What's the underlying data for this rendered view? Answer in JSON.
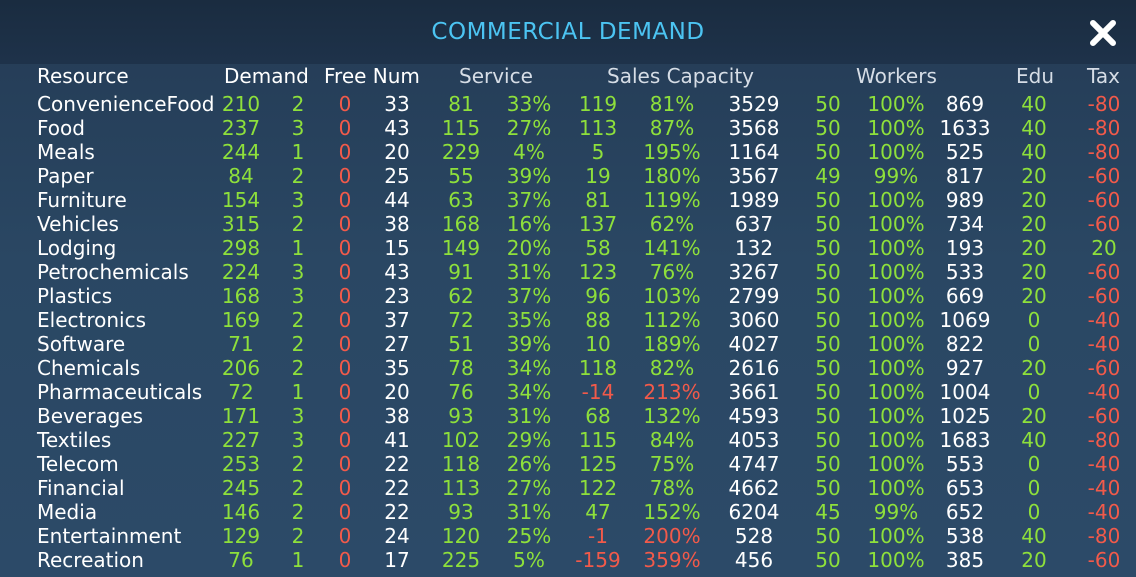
{
  "window": {
    "title": "COMMERCIAL DEMAND",
    "close_icon": "close-x-icon"
  },
  "colors": {
    "title": "#4cc4f2",
    "positive": "#8ee03b",
    "negative": "#f25a4a",
    "neutral": "#ffffff"
  },
  "headers": [
    "Resource",
    "Demand",
    "Free Num",
    "Service",
    "Sales Capacity",
    "Workers",
    "Edu",
    "Tax"
  ],
  "columns": [
    "resource",
    "demand",
    "demand_level",
    "free_num",
    "num",
    "service",
    "service_pct",
    "sales_capacity",
    "sales_capacity_pct",
    "sales_capacity_total",
    "workers",
    "workers_pct",
    "workers_total",
    "edu",
    "tax"
  ],
  "rows": [
    [
      "ConvenienceFood",
      "210",
      "2",
      "0",
      "33",
      "81",
      "33%",
      "119",
      "81%",
      "3529",
      "50",
      "100%",
      "869",
      "40",
      "-80"
    ],
    [
      "Food",
      "237",
      "3",
      "0",
      "43",
      "115",
      "27%",
      "113",
      "87%",
      "3568",
      "50",
      "100%",
      "1633",
      "40",
      "-80"
    ],
    [
      "Meals",
      "244",
      "1",
      "0",
      "20",
      "229",
      "4%",
      "5",
      "195%",
      "1164",
      "50",
      "100%",
      "525",
      "40",
      "-80"
    ],
    [
      "Paper",
      "84",
      "2",
      "0",
      "25",
      "55",
      "39%",
      "19",
      "180%",
      "3567",
      "49",
      "99%",
      "817",
      "20",
      "-60"
    ],
    [
      "Furniture",
      "154",
      "3",
      "0",
      "44",
      "63",
      "37%",
      "81",
      "119%",
      "1989",
      "50",
      "100%",
      "989",
      "20",
      "-60"
    ],
    [
      "Vehicles",
      "315",
      "2",
      "0",
      "38",
      "168",
      "16%",
      "137",
      "62%",
      "637",
      "50",
      "100%",
      "734",
      "20",
      "-60"
    ],
    [
      "Lodging",
      "298",
      "1",
      "0",
      "15",
      "149",
      "20%",
      "58",
      "141%",
      "132",
      "50",
      "100%",
      "193",
      "20",
      "20"
    ],
    [
      "Petrochemicals",
      "224",
      "3",
      "0",
      "43",
      "91",
      "31%",
      "123",
      "76%",
      "3267",
      "50",
      "100%",
      "533",
      "20",
      "-60"
    ],
    [
      "Plastics",
      "168",
      "3",
      "0",
      "23",
      "62",
      "37%",
      "96",
      "103%",
      "2799",
      "50",
      "100%",
      "669",
      "20",
      "-60"
    ],
    [
      "Electronics",
      "169",
      "2",
      "0",
      "37",
      "72",
      "35%",
      "88",
      "112%",
      "3060",
      "50",
      "100%",
      "1069",
      "0",
      "-40"
    ],
    [
      "Software",
      "71",
      "2",
      "0",
      "27",
      "51",
      "39%",
      "10",
      "189%",
      "4027",
      "50",
      "100%",
      "822",
      "0",
      "-40"
    ],
    [
      "Chemicals",
      "206",
      "2",
      "0",
      "35",
      "78",
      "34%",
      "118",
      "82%",
      "2616",
      "50",
      "100%",
      "927",
      "20",
      "-60"
    ],
    [
      "Pharmaceuticals",
      "72",
      "1",
      "0",
      "20",
      "76",
      "34%",
      "-14",
      "213%",
      "3661",
      "50",
      "100%",
      "1004",
      "0",
      "-40"
    ],
    [
      "Beverages",
      "171",
      "3",
      "0",
      "38",
      "93",
      "31%",
      "68",
      "132%",
      "4593",
      "50",
      "100%",
      "1025",
      "20",
      "-60"
    ],
    [
      "Textiles",
      "227",
      "3",
      "0",
      "41",
      "102",
      "29%",
      "115",
      "84%",
      "4053",
      "50",
      "100%",
      "1683",
      "40",
      "-80"
    ],
    [
      "Telecom",
      "253",
      "2",
      "0",
      "22",
      "118",
      "26%",
      "125",
      "75%",
      "4747",
      "50",
      "100%",
      "553",
      "0",
      "-40"
    ],
    [
      "Financial",
      "245",
      "2",
      "0",
      "22",
      "113",
      "27%",
      "122",
      "78%",
      "4662",
      "50",
      "100%",
      "653",
      "0",
      "-40"
    ],
    [
      "Media",
      "146",
      "2",
      "0",
      "22",
      "93",
      "31%",
      "47",
      "152%",
      "6204",
      "45",
      "99%",
      "652",
      "0",
      "-40"
    ],
    [
      "Entertainment",
      "129",
      "2",
      "0",
      "24",
      "120",
      "25%",
      "-1",
      "200%",
      "528",
      "50",
      "100%",
      "538",
      "40",
      "-80"
    ],
    [
      "Recreation",
      "76",
      "1",
      "0",
      "17",
      "225",
      "5%",
      "-159",
      "359%",
      "456",
      "50",
      "100%",
      "385",
      "20",
      "-60"
    ]
  ]
}
